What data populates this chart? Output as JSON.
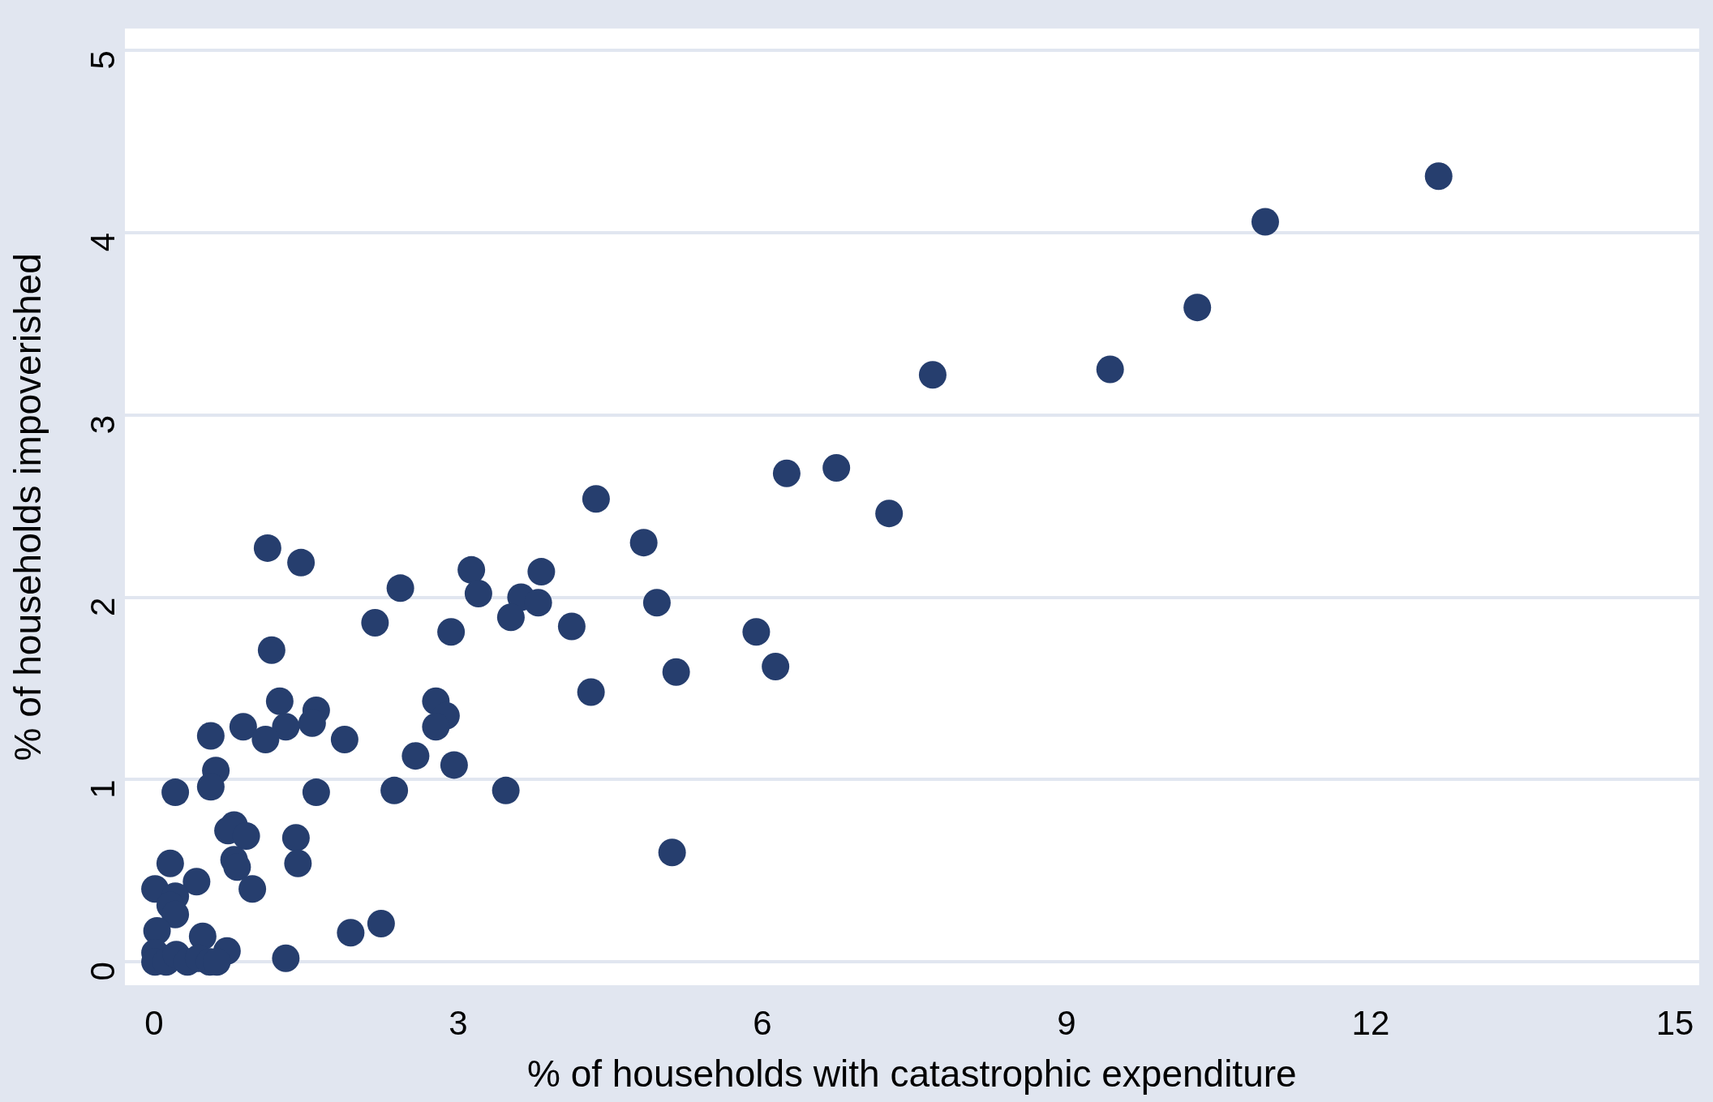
{
  "chart_data": {
    "type": "scatter",
    "xlabel": "% of households with catastrophic expenditure",
    "ylabel": "% of households impoverished",
    "xlim": [
      -0.29,
      15.24
    ],
    "ylim": [
      -0.13,
      5.12
    ],
    "xticks": [
      0,
      3,
      6,
      9,
      12,
      15
    ],
    "yticks": [
      0,
      1,
      2,
      3,
      4,
      5
    ],
    "grid": "y",
    "marker": "circle",
    "legend": false,
    "series": [
      {
        "color": "#263e6e",
        "x": [
          12.67,
          10.96,
          10.29,
          9.43,
          7.68,
          6.73,
          6.24,
          7.25,
          4.36,
          4.83,
          3.82,
          3.13,
          3.2,
          3.62,
          3.79,
          3.52,
          2.43,
          2.18,
          4.96,
          4.12,
          2.93,
          5.94,
          6.13,
          5.15,
          4.31,
          1.12,
          1.45,
          1.16,
          1.24,
          1.6,
          1.56,
          1.3,
          0.88,
          1.1,
          1.88,
          0.56,
          0.61,
          0.56,
          0.21,
          1.6,
          2.37,
          2.58,
          2.78,
          2.88,
          2.78,
          2.96,
          3.47,
          5.11,
          0.79,
          0.73,
          0.91,
          1.4,
          0.79,
          0.82,
          1.42,
          0.16,
          0.42,
          0.97,
          0.01,
          0.21,
          0.16,
          0.21,
          0.03,
          1.94,
          2.24,
          1.3,
          0.48,
          0.72,
          0.01,
          0.01,
          0.12,
          0.22,
          0.33,
          0.44,
          0.55,
          0.62
        ],
        "values": [
          4.31,
          4.06,
          3.59,
          3.25,
          3.22,
          2.71,
          2.68,
          2.46,
          2.54,
          2.3,
          2.14,
          2.15,
          2.02,
          2.0,
          1.97,
          1.89,
          2.05,
          1.86,
          1.97,
          1.84,
          1.81,
          1.81,
          1.62,
          1.59,
          1.48,
          2.27,
          2.19,
          1.71,
          1.43,
          1.38,
          1.31,
          1.29,
          1.29,
          1.22,
          1.22,
          1.24,
          1.05,
          0.96,
          0.93,
          0.93,
          0.94,
          1.13,
          1.43,
          1.35,
          1.29,
          1.08,
          0.94,
          0.6,
          0.75,
          0.72,
          0.69,
          0.68,
          0.56,
          0.52,
          0.54,
          0.54,
          0.44,
          0.4,
          0.4,
          0.36,
          0.31,
          0.26,
          0.17,
          0.16,
          0.21,
          0.02,
          0.14,
          0.06,
          0.05,
          0.0,
          0.0,
          0.04,
          0.0,
          0.02,
          0.0,
          0.0
        ]
      }
    ]
  }
}
